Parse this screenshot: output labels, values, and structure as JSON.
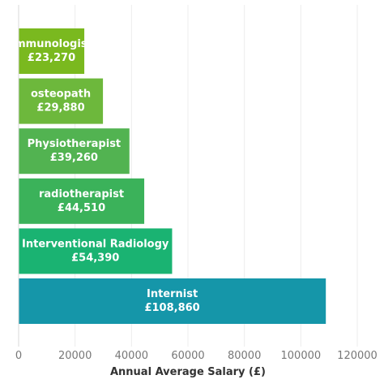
{
  "chart_data": {
    "type": "bar",
    "orientation": "horizontal",
    "categories": [
      "Immunologist",
      "osteopath",
      "Physiotherapist",
      "radiotherapist",
      "Interventional Radiology",
      "Internist"
    ],
    "values": [
      23270,
      29880,
      39260,
      44510,
      54390,
      108860
    ],
    "value_labels": [
      "£23,270",
      "£29,880",
      "£39,260",
      "£44,510",
      "£54,390",
      "£108,860"
    ],
    "colors": [
      "#7ab91f",
      "#6db83c",
      "#52b351",
      "#3bb25a",
      "#1ab372",
      "#1596a9"
    ],
    "xlabel": "Annual Average Salary (£)",
    "ylabel": "",
    "xlim": [
      0,
      120000
    ],
    "xticks": [
      0,
      20000,
      40000,
      60000,
      80000,
      100000,
      120000
    ],
    "xtick_labels": [
      "0",
      "20000",
      "40000",
      "60000",
      "80000",
      "100000",
      "120000"
    ],
    "grid": "vertical"
  }
}
